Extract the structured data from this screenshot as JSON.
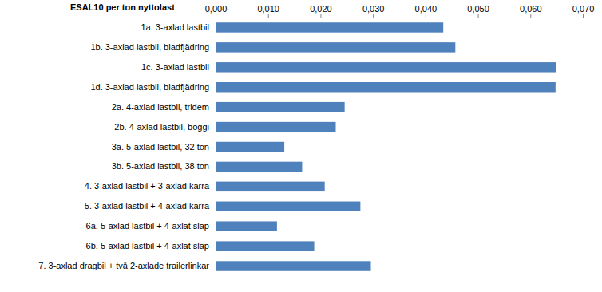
{
  "chart_data": {
    "type": "bar",
    "orientation": "horizontal",
    "title": "ESAL10 per ton nyttolast",
    "categories": [
      "1a. 3-axlad lastbil",
      "1b. 3-axlad lastbil, bladfjädring",
      "1c. 3-axlad lastbil",
      "1d. 3-axlad lastbil, bladfjädring",
      "2a. 4-axlad lastbil, tridem",
      "2b. 4-axlad lastbil, boggi",
      "3a. 5-axlad lastbil, 32 ton",
      "3b. 5-axlad lastbil, 38 ton",
      "4. 3-axlad lastbil + 3-axlad kärra",
      "5. 3-axlad lastbil + 4-axlad kärra",
      "6a. 5-axlad lastbil + 4-axlat släp",
      "6b. 5-axlad lastbil + 4-axlat släp",
      "7. 3-axlad dragbil + två 2-axlade trailerlinkar"
    ],
    "values": [
      0.0434,
      0.0457,
      0.0649,
      0.0648,
      0.0246,
      0.0229,
      0.0131,
      0.0165,
      0.0208,
      0.0276,
      0.0117,
      0.0188,
      0.0296
    ],
    "color": "#4f81bd",
    "xlim": [
      0,
      0.07
    ],
    "xticks": [
      {
        "value": 0,
        "label": "0,000"
      },
      {
        "value": 0.01,
        "label": "0,010"
      },
      {
        "value": 0.02,
        "label": "0,020"
      },
      {
        "value": 0.03,
        "label": "0,030"
      },
      {
        "value": 0.04,
        "label": "0,040"
      },
      {
        "value": 0.05,
        "label": "0,050"
      },
      {
        "value": 0.06,
        "label": "0,060"
      },
      {
        "value": 0.07,
        "label": "0,070"
      }
    ],
    "grid": false
  }
}
